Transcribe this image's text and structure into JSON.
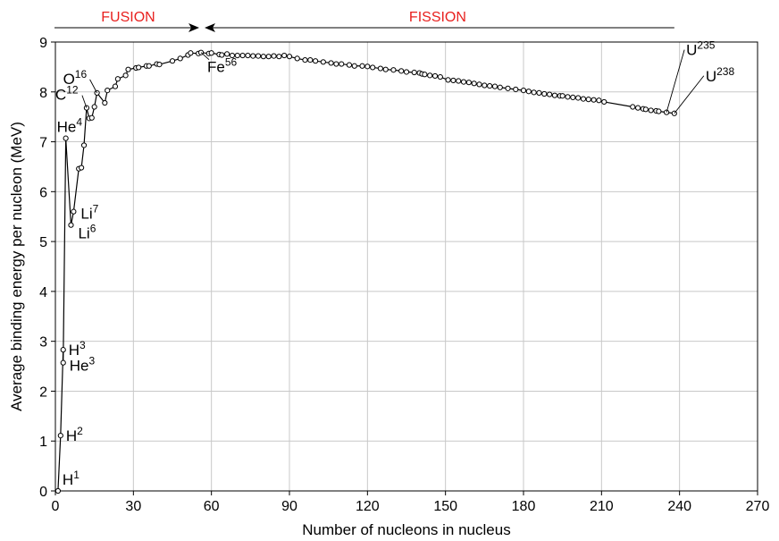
{
  "chart_data": {
    "type": "line",
    "xlabel": "Number of nucleons in nucleus",
    "ylabel": "Average binding energy per nucleon (MeV)",
    "xlim": [
      0,
      270
    ],
    "ylim": [
      0,
      9
    ],
    "xticks": [
      0,
      30,
      60,
      90,
      120,
      150,
      180,
      210,
      240,
      270
    ],
    "yticks": [
      0,
      1,
      2,
      3,
      4,
      5,
      6,
      7,
      8,
      9
    ],
    "grid": true,
    "regions": [
      {
        "label": "FUSION",
        "x_from": 0,
        "x_to": 56,
        "color": "#e8201e"
      },
      {
        "label": "FISSION",
        "x_from": 56,
        "x_to": 238,
        "color": "#e8201e"
      }
    ],
    "annotations": [
      {
        "base": "H",
        "sup": "1",
        "x": 1,
        "y": 0.0
      },
      {
        "base": "H",
        "sup": "2",
        "x": 2,
        "y": 1.11
      },
      {
        "base": "H",
        "sup": "3",
        "x": 3,
        "y": 2.83
      },
      {
        "base": "He",
        "sup": "3",
        "x": 3,
        "y": 2.57
      },
      {
        "base": "He",
        "sup": "4",
        "x": 4,
        "y": 7.07
      },
      {
        "base": "Li",
        "sup": "6",
        "x": 6,
        "y": 5.33
      },
      {
        "base": "Li",
        "sup": "7",
        "x": 7,
        "y": 5.6
      },
      {
        "base": "C",
        "sup": "12",
        "x": 12,
        "y": 7.68
      },
      {
        "base": "O",
        "sup": "16",
        "x": 16,
        "y": 7.98
      },
      {
        "base": "Fe",
        "sup": "56",
        "x": 56,
        "y": 8.79
      },
      {
        "base": "U",
        "sup": "235",
        "x": 235,
        "y": 7.59
      },
      {
        "base": "U",
        "sup": "238",
        "x": 238,
        "y": 7.57
      }
    ],
    "series": [
      {
        "x": [
          1,
          2,
          3,
          3,
          4,
          6,
          7,
          9,
          10,
          11,
          12,
          13,
          14,
          15,
          16,
          19,
          20,
          23,
          24,
          27,
          28,
          31,
          32,
          35,
          36,
          39,
          40,
          45,
          48,
          51,
          52,
          55,
          56,
          59,
          60,
          63,
          64,
          66,
          68,
          70,
          72,
          74,
          76,
          78,
          80,
          82,
          84,
          86,
          88,
          90,
          93,
          96,
          98,
          100,
          103,
          106,
          108,
          110,
          113,
          115,
          118,
          120,
          122,
          125,
          127,
          130,
          133,
          135,
          138,
          140,
          141,
          142,
          144,
          146,
          148,
          151,
          153,
          155,
          157,
          159,
          161,
          163,
          165,
          167,
          169,
          171,
          174,
          177,
          180,
          182,
          184,
          186,
          188,
          190,
          192,
          194,
          195,
          197,
          199,
          201,
          203,
          205,
          207,
          209,
          211,
          222,
          224,
          226,
          227,
          229,
          231,
          232,
          235,
          238
        ],
        "y": [
          0.0,
          1.11,
          2.83,
          2.57,
          7.07,
          5.33,
          5.6,
          6.46,
          6.48,
          6.93,
          7.68,
          7.47,
          7.48,
          7.7,
          7.98,
          7.78,
          8.03,
          8.11,
          8.26,
          8.33,
          8.45,
          8.48,
          8.49,
          8.52,
          8.52,
          8.56,
          8.55,
          8.62,
          8.67,
          8.74,
          8.78,
          8.77,
          8.79,
          8.77,
          8.78,
          8.75,
          8.74,
          8.76,
          8.73,
          8.73,
          8.73,
          8.73,
          8.72,
          8.72,
          8.71,
          8.71,
          8.72,
          8.71,
          8.73,
          8.71,
          8.67,
          8.64,
          8.64,
          8.62,
          8.6,
          8.58,
          8.56,
          8.56,
          8.54,
          8.52,
          8.52,
          8.51,
          8.49,
          8.47,
          8.45,
          8.44,
          8.42,
          8.4,
          8.39,
          8.38,
          8.36,
          8.35,
          8.33,
          8.32,
          8.3,
          8.24,
          8.23,
          8.22,
          8.2,
          8.19,
          8.17,
          8.15,
          8.13,
          8.12,
          8.11,
          8.09,
          8.07,
          8.05,
          8.03,
          8.01,
          7.99,
          7.98,
          7.96,
          7.95,
          7.93,
          7.92,
          7.92,
          7.9,
          7.89,
          7.88,
          7.86,
          7.85,
          7.84,
          7.83,
          7.8,
          7.7,
          7.68,
          7.66,
          7.65,
          7.63,
          7.62,
          7.61,
          7.59,
          7.57
        ]
      }
    ]
  }
}
